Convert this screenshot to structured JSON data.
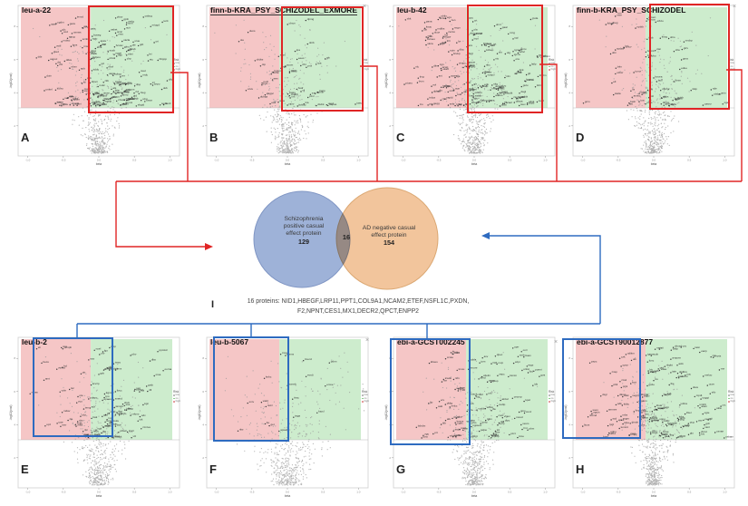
{
  "page": {
    "background": "#ffffff"
  },
  "colors": {
    "top_connector": "#e02525",
    "bottom_connector": "#2e6bc0",
    "region_negative_pink": "#f5c6c6",
    "region_positive_green": "#cdeccd",
    "venn_left_fill": "#96abd5",
    "venn_right_fill": "#f2c59c"
  },
  "close_icon_glyph": "×",
  "venn": {
    "left_lines": [
      "Schizophrenia",
      "positive casual",
      "effect protein"
    ],
    "left_count": "129",
    "overlap_count": "16",
    "right_lines": [
      "AD negative casual",
      "effect protein"
    ],
    "right_count": "154"
  },
  "overlap_note": {
    "letter": "I",
    "line1": "16 proteins: NID1,HBEGF,LRP11,PPT1,COL9A1,NCAM2,ETEF,NSFL1C,PXDN,",
    "line2": "F2,NPNT,CES1,MX1,DECR2,QPCT,ENPP2"
  },
  "chart_data": [
    {
      "type": "scatter",
      "subtype": "volcano",
      "panel": "A",
      "title": "leu-a-22",
      "xlabel": "beta",
      "ylabel": "-log10(pval)",
      "x_ticks": [
        "-1.0",
        "-0.5",
        "0.0",
        "0.5",
        "1.0"
      ],
      "y_ticks": [
        "2",
        "4",
        "6",
        "8"
      ],
      "legend": {
        "title": "Risk",
        "items": [
          "low",
          "ns",
          "high"
        ]
      },
      "regions": {
        "upper_left": "pink negative-effect significant",
        "upper_right": "green positive-effect significant"
      },
      "highlight_box": {
        "color": "red",
        "region": "green positive side"
      },
      "approx_points": {
        "background": 520,
        "labeled_significant": 150
      }
    },
    {
      "type": "scatter",
      "subtype": "volcano",
      "panel": "B",
      "title": "finn-b-KRA_PSY_SCHIZODEL_EXMORE",
      "xlabel": "beta",
      "ylabel": "-log10(pval)",
      "x_ticks": [
        "-1.0",
        "-0.5",
        "0.0",
        "0.5",
        "1.0"
      ],
      "y_ticks": [
        "2",
        "4",
        "6",
        "8"
      ],
      "legend": {
        "title": "Risk",
        "items": [
          "low",
          "ns",
          "high"
        ]
      },
      "regions": {
        "upper_left": "pink negative-effect significant",
        "upper_right": "green positive-effect significant"
      },
      "highlight_box": {
        "color": "red",
        "region": "green positive side"
      },
      "approx_points": {
        "background": 520,
        "labeled_significant": 44
      }
    },
    {
      "type": "scatter",
      "subtype": "volcano",
      "panel": "C",
      "title": "leu-b-42",
      "xlabel": "beta",
      "ylabel": "-log10(pval)",
      "x_ticks": [
        "-1.0",
        "-0.5",
        "0.0",
        "0.5",
        "1.0"
      ],
      "y_ticks": [
        "2",
        "4",
        "6",
        "8"
      ],
      "legend": {
        "title": "Risk",
        "items": [
          "low",
          "ns",
          "high"
        ]
      },
      "regions": {
        "upper_left": "pink negative-effect significant",
        "upper_right": "green positive-effect significant"
      },
      "highlight_box": {
        "color": "red",
        "region": "green positive side"
      },
      "approx_points": {
        "background": 520,
        "labeled_significant": 150
      }
    },
    {
      "type": "scatter",
      "subtype": "volcano",
      "panel": "D",
      "title": "finn-b-KRA_PSY_SCHIZODEL",
      "xlabel": "beta",
      "ylabel": "-log10(pval)",
      "x_ticks": [
        "-1.0",
        "-0.5",
        "0.0",
        "0.5",
        "1.0"
      ],
      "y_ticks": [
        "2",
        "4",
        "6",
        "8"
      ],
      "legend": {
        "title": "Risk",
        "items": [
          "low",
          "ns",
          "high"
        ]
      },
      "regions": {
        "upper_left": "pink negative-effect significant",
        "upper_right": "green positive-effect significant"
      },
      "highlight_box": {
        "color": "red",
        "region": "green positive side"
      },
      "approx_points": {
        "background": 520,
        "labeled_significant": 58
      }
    },
    {
      "type": "scatter",
      "subtype": "volcano",
      "panel": "E",
      "title": "leu-b-2",
      "xlabel": "beta",
      "ylabel": "-log10(pval)",
      "x_ticks": [
        "-1.0",
        "-0.5",
        "0.0",
        "0.5",
        "1.0"
      ],
      "y_ticks": [
        "2",
        "4",
        "6",
        "8"
      ],
      "legend": {
        "title": "Risk",
        "items": [
          "low",
          "ns",
          "high"
        ]
      },
      "regions": {
        "upper_left": "pink negative-effect significant",
        "upper_right": "green positive-effect significant"
      },
      "highlight_box": {
        "color": "blue",
        "region": "pink negative side"
      },
      "approx_points": {
        "background": 520,
        "labeled_significant": 95
      }
    },
    {
      "type": "scatter",
      "subtype": "volcano",
      "panel": "F",
      "title": "leu-b-5067",
      "xlabel": "beta",
      "ylabel": "-log10(pval)",
      "x_ticks": [
        "-1.0",
        "-0.5",
        "0.0",
        "0.5",
        "1.0"
      ],
      "y_ticks": [
        "2",
        "4",
        "6",
        "8"
      ],
      "legend": {
        "title": "Risk",
        "items": [
          "low",
          "ns",
          "high"
        ]
      },
      "regions": {
        "upper_left": "pink negative-effect significant",
        "upper_right": "green positive-effect significant"
      },
      "highlight_box": {
        "color": "blue",
        "region": "pink negative side"
      },
      "approx_points": {
        "background": 560,
        "labeled_significant": 18
      }
    },
    {
      "type": "scatter",
      "subtype": "volcano",
      "panel": "G",
      "title": "ebi-a-GCST002245",
      "xlabel": "beta",
      "ylabel": "-log10(pval)",
      "x_ticks": [
        "-1.0",
        "-0.5",
        "0.0",
        "0.5",
        "1.0"
      ],
      "y_ticks": [
        "2",
        "4",
        "6",
        "8"
      ],
      "legend": {
        "title": "Risk",
        "items": [
          "low",
          "ns",
          "high"
        ]
      },
      "regions": {
        "upper_left": "pink negative-effect significant",
        "upper_right": "green positive-effect significant"
      },
      "highlight_box": {
        "color": "blue",
        "region": "pink negative side"
      },
      "approx_points": {
        "background": 520,
        "labeled_significant": 95
      }
    },
    {
      "type": "scatter",
      "subtype": "volcano",
      "panel": "H",
      "title": "ebi-a-GCST90012877",
      "xlabel": "beta",
      "ylabel": "-log10(pval)",
      "x_ticks": [
        "-1.0",
        "-0.5",
        "0.0",
        "0.5",
        "1.0"
      ],
      "y_ticks": [
        "2",
        "4",
        "6",
        "8"
      ],
      "legend": {
        "title": "Risk",
        "items": [
          "low",
          "ns",
          "high"
        ]
      },
      "regions": {
        "upper_left": "pink negative-effect significant",
        "upper_right": "green positive-effect significant"
      },
      "highlight_box": {
        "color": "blue",
        "region": "pink negative side"
      },
      "approx_points": {
        "background": 520,
        "labeled_significant": 130
      }
    },
    {
      "type": "venn",
      "sets": [
        {
          "label": "Schizophrenia positive casual effect protein",
          "size": 129
        },
        {
          "label": "AD negative casual effect protein",
          "size": 154
        }
      ],
      "overlap_size": 16,
      "overlap_proteins": [
        "NID1",
        "HBEGF",
        "LRP11",
        "PPT1",
        "COL9A1",
        "NCAM2",
        "ETEF",
        "NSFL1C",
        "PXDN",
        "F2",
        "NPNT",
        "CES1",
        "MX1",
        "DECR2",
        "QPCT",
        "ENPP2"
      ]
    }
  ]
}
